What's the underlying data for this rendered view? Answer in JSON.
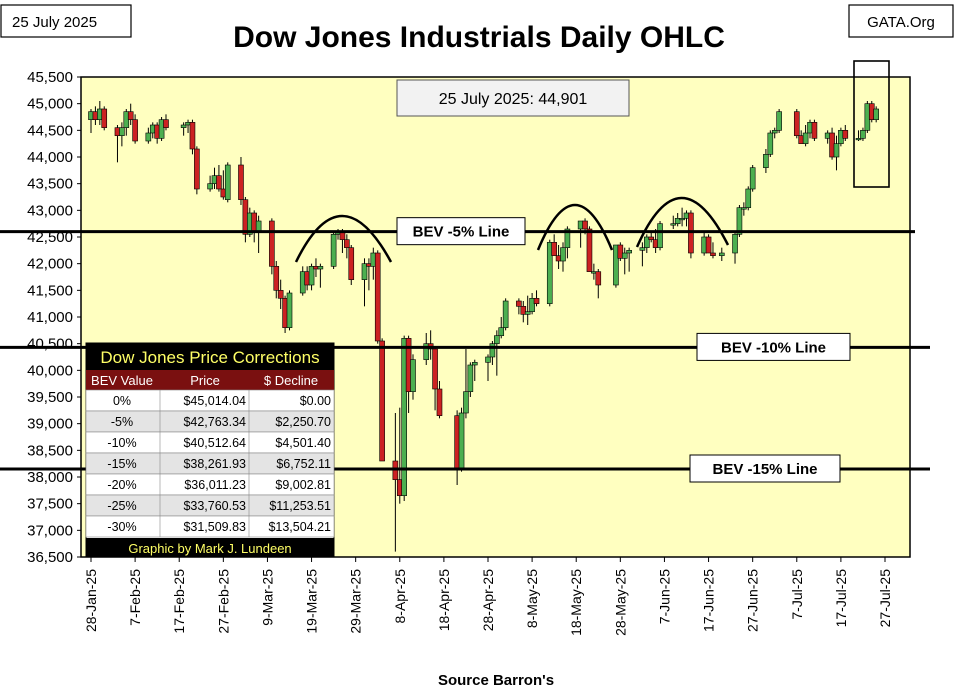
{
  "header": {
    "date_label": "25 July 2025",
    "brand_label": "GATA.Org"
  },
  "chart_data": {
    "type": "candlestick",
    "title": "Dow Jones Industrials Daily OHLC",
    "xlabel": "Source Barron's",
    "ylabel": "",
    "ylim": [
      36500,
      45500
    ],
    "yticks": [
      "36,500",
      "37,000",
      "37,500",
      "38,000",
      "38,500",
      "39,000",
      "39,500",
      "40,000",
      "40,500",
      "41,000",
      "41,500",
      "42,000",
      "42,500",
      "43,000",
      "43,500",
      "44,000",
      "44,500",
      "45,000",
      "45,500"
    ],
    "xticks": [
      "28-Jan-25",
      "7-Feb-25",
      "17-Feb-25",
      "27-Feb-25",
      "9-Mar-25",
      "19-Mar-25",
      "29-Mar-25",
      "8-Apr-25",
      "18-Apr-25",
      "28-Apr-25",
      "8-May-25",
      "18-May-25",
      "28-May-25",
      "7-Jun-25",
      "17-Jun-25",
      "27-Jun-25",
      "7-Jul-25",
      "17-Jul-25",
      "27-Jul-25"
    ],
    "colors": {
      "up": "#4caf50",
      "down": "#cc2222",
      "plot_bg": "#ffffc0"
    },
    "annotation": "25 July 2025:  44,901",
    "reference_lines": [
      {
        "label": "BEV -5% Line",
        "value": 42600
      },
      {
        "label": "BEV -10% Line",
        "value": 40430
      },
      {
        "label": "BEV -15% Line",
        "value": 38150
      }
    ],
    "candles": [
      {
        "x": "2025-01-28",
        "o": 44700,
        "h": 44900,
        "l": 44450,
        "c": 44850
      },
      {
        "x": "2025-01-29",
        "o": 44850,
        "h": 44950,
        "l": 44600,
        "c": 44700
      },
      {
        "x": "2025-01-30",
        "o": 44700,
        "h": 45050,
        "l": 44600,
        "c": 44900
      },
      {
        "x": "2025-01-31",
        "o": 44900,
        "h": 44950,
        "l": 44500,
        "c": 44550
      },
      {
        "x": "2025-02-03",
        "o": 44550,
        "h": 44600,
        "l": 43900,
        "c": 44400
      },
      {
        "x": "2025-02-04",
        "o": 44400,
        "h": 44650,
        "l": 44200,
        "c": 44550
      },
      {
        "x": "2025-02-05",
        "o": 44550,
        "h": 44900,
        "l": 44400,
        "c": 44850
      },
      {
        "x": "2025-02-06",
        "o": 44850,
        "h": 45000,
        "l": 44600,
        "c": 44700
      },
      {
        "x": "2025-02-07",
        "o": 44700,
        "h": 44800,
        "l": 44250,
        "c": 44300
      },
      {
        "x": "2025-02-10",
        "o": 44300,
        "h": 44550,
        "l": 44250,
        "c": 44450
      },
      {
        "x": "2025-02-11",
        "o": 44450,
        "h": 44650,
        "l": 44350,
        "c": 44600
      },
      {
        "x": "2025-02-12",
        "o": 44600,
        "h": 44650,
        "l": 44250,
        "c": 44350
      },
      {
        "x": "2025-02-13",
        "o": 44350,
        "h": 44750,
        "l": 44300,
        "c": 44700
      },
      {
        "x": "2025-02-14",
        "o": 44700,
        "h": 44800,
        "l": 44500,
        "c": 44550
      },
      {
        "x": "2025-02-18",
        "o": 44550,
        "h": 44650,
        "l": 44400,
        "c": 44600
      },
      {
        "x": "2025-02-19",
        "o": 44600,
        "h": 44700,
        "l": 44450,
        "c": 44650
      },
      {
        "x": "2025-02-20",
        "o": 44650,
        "h": 44700,
        "l": 44050,
        "c": 44150
      },
      {
        "x": "2025-02-21",
        "o": 44150,
        "h": 44200,
        "l": 43300,
        "c": 43400
      },
      {
        "x": "2025-02-24",
        "o": 43400,
        "h": 43650,
        "l": 43350,
        "c": 43500
      },
      {
        "x": "2025-02-25",
        "o": 43500,
        "h": 43800,
        "l": 43400,
        "c": 43650
      },
      {
        "x": "2025-02-26",
        "o": 43650,
        "h": 43850,
        "l": 43350,
        "c": 43400
      },
      {
        "x": "2025-02-27",
        "o": 43400,
        "h": 43750,
        "l": 43200,
        "c": 43250
      },
      {
        "x": "2025-02-28",
        "o": 43200,
        "h": 43900,
        "l": 43150,
        "c": 43850
      },
      {
        "x": "2025-03-03",
        "o": 43850,
        "h": 44000,
        "l": 43100,
        "c": 43200
      },
      {
        "x": "2025-03-04",
        "o": 43200,
        "h": 43250,
        "l": 42400,
        "c": 42550
      },
      {
        "x": "2025-03-05",
        "o": 42550,
        "h": 43050,
        "l": 42500,
        "c": 42950
      },
      {
        "x": "2025-03-06",
        "o": 42950,
        "h": 43000,
        "l": 42400,
        "c": 42600
      },
      {
        "x": "2025-03-07",
        "o": 42600,
        "h": 42900,
        "l": 42200,
        "c": 42800
      },
      {
        "x": "2025-03-10",
        "o": 42800,
        "h": 42850,
        "l": 41800,
        "c": 41950
      },
      {
        "x": "2025-03-11",
        "o": 41950,
        "h": 42050,
        "l": 41350,
        "c": 41500
      },
      {
        "x": "2025-03-12",
        "o": 41500,
        "h": 41700,
        "l": 41150,
        "c": 41350
      },
      {
        "x": "2025-03-13",
        "o": 41350,
        "h": 41400,
        "l": 40700,
        "c": 40800
      },
      {
        "x": "2025-03-14",
        "o": 40800,
        "h": 41500,
        "l": 40750,
        "c": 41450
      },
      {
        "x": "2025-03-17",
        "o": 41450,
        "h": 41950,
        "l": 41400,
        "c": 41850
      },
      {
        "x": "2025-03-18",
        "o": 41850,
        "h": 41950,
        "l": 41500,
        "c": 41600
      },
      {
        "x": "2025-03-19",
        "o": 41600,
        "h": 42000,
        "l": 41500,
        "c": 41950
      },
      {
        "x": "2025-03-20",
        "o": 41950,
        "h": 42100,
        "l": 41750,
        "c": 41900
      },
      {
        "x": "2025-03-21",
        "o": 41900,
        "h": 42000,
        "l": 41550,
        "c": 41950
      },
      {
        "x": "2025-03-24",
        "o": 41950,
        "h": 42600,
        "l": 41900,
        "c": 42550
      },
      {
        "x": "2025-03-25",
        "o": 42550,
        "h": 42650,
        "l": 42450,
        "c": 42600
      },
      {
        "x": "2025-03-26",
        "o": 42600,
        "h": 42650,
        "l": 42200,
        "c": 42450
      },
      {
        "x": "2025-03-27",
        "o": 42450,
        "h": 42550,
        "l": 42100,
        "c": 42300
      },
      {
        "x": "2025-03-28",
        "o": 42300,
        "h": 42350,
        "l": 41600,
        "c": 41700
      },
      {
        "x": "2025-03-31",
        "o": 41700,
        "h": 42100,
        "l": 41200,
        "c": 42000
      },
      {
        "x": "2025-04-01",
        "o": 42000,
        "h": 42100,
        "l": 41500,
        "c": 41950
      },
      {
        "x": "2025-04-02",
        "o": 41950,
        "h": 42300,
        "l": 41700,
        "c": 42200
      },
      {
        "x": "2025-04-03",
        "o": 42200,
        "h": 42250,
        "l": 40500,
        "c": 40550
      },
      {
        "x": "2025-04-04",
        "o": 40550,
        "h": 40600,
        "l": 38300,
        "c": 38300
      },
      {
        "x": "2025-04-07",
        "o": 38300,
        "h": 39200,
        "l": 36600,
        "c": 37950
      },
      {
        "x": "2025-04-08",
        "o": 37950,
        "h": 39300,
        "l": 37500,
        "c": 37650
      },
      {
        "x": "2025-04-09",
        "o": 37650,
        "h": 40650,
        "l": 37550,
        "c": 40600
      },
      {
        "x": "2025-04-10",
        "o": 40600,
        "h": 40650,
        "l": 39200,
        "c": 39600
      },
      {
        "x": "2025-04-11",
        "o": 39600,
        "h": 40300,
        "l": 39450,
        "c": 40200
      },
      {
        "x": "2025-04-14",
        "o": 40200,
        "h": 40700,
        "l": 40100,
        "c": 40500
      },
      {
        "x": "2025-04-15",
        "o": 40500,
        "h": 40750,
        "l": 40200,
        "c": 40400
      },
      {
        "x": "2025-04-16",
        "o": 40400,
        "h": 40450,
        "l": 39250,
        "c": 39650
      },
      {
        "x": "2025-04-17",
        "o": 39650,
        "h": 39800,
        "l": 39100,
        "c": 39150
      },
      {
        "x": "2025-04-21",
        "o": 39150,
        "h": 39250,
        "l": 37850,
        "c": 38150
      },
      {
        "x": "2025-04-22",
        "o": 38150,
        "h": 39300,
        "l": 38100,
        "c": 39200
      },
      {
        "x": "2025-04-23",
        "o": 39200,
        "h": 40400,
        "l": 39100,
        "c": 39600
      },
      {
        "x": "2025-04-24",
        "o": 39600,
        "h": 40150,
        "l": 39500,
        "c": 40100
      },
      {
        "x": "2025-04-25",
        "o": 40100,
        "h": 40200,
        "l": 39800,
        "c": 40150
      },
      {
        "x": "2025-04-28",
        "o": 40150,
        "h": 40300,
        "l": 39800,
        "c": 40250
      },
      {
        "x": "2025-04-29",
        "o": 40250,
        "h": 40550,
        "l": 40100,
        "c": 40500
      },
      {
        "x": "2025-04-30",
        "o": 40500,
        "h": 40750,
        "l": 39900,
        "c": 40650
      },
      {
        "x": "2025-05-01",
        "o": 40650,
        "h": 41000,
        "l": 40600,
        "c": 40800
      },
      {
        "x": "2025-05-02",
        "o": 40800,
        "h": 41350,
        "l": 40750,
        "c": 41300
      },
      {
        "x": "2025-05-05",
        "o": 41300,
        "h": 41350,
        "l": 41050,
        "c": 41200
      },
      {
        "x": "2025-05-06",
        "o": 41200,
        "h": 41300,
        "l": 40900,
        "c": 41050
      },
      {
        "x": "2025-05-07",
        "o": 41050,
        "h": 41400,
        "l": 40850,
        "c": 41100
      },
      {
        "x": "2025-05-08",
        "o": 41100,
        "h": 41450,
        "l": 41050,
        "c": 41350
      },
      {
        "x": "2025-05-09",
        "o": 41350,
        "h": 41500,
        "l": 41200,
        "c": 41250
      },
      {
        "x": "2025-05-12",
        "o": 41250,
        "h": 42450,
        "l": 41200,
        "c": 42400
      },
      {
        "x": "2025-05-13",
        "o": 42400,
        "h": 42550,
        "l": 42150,
        "c": 42150
      },
      {
        "x": "2025-05-14",
        "o": 42150,
        "h": 42350,
        "l": 41900,
        "c": 42050
      },
      {
        "x": "2025-05-15",
        "o": 42050,
        "h": 42400,
        "l": 41850,
        "c": 42300
      },
      {
        "x": "2025-05-16",
        "o": 42300,
        "h": 42700,
        "l": 42100,
        "c": 42650
      },
      {
        "x": "2025-05-19",
        "o": 42650,
        "h": 42800,
        "l": 42300,
        "c": 42800
      },
      {
        "x": "2025-05-20",
        "o": 42800,
        "h": 42850,
        "l": 42550,
        "c": 42650
      },
      {
        "x": "2025-05-21",
        "o": 42650,
        "h": 42700,
        "l": 41850,
        "c": 41850
      },
      {
        "x": "2025-05-22",
        "o": 41850,
        "h": 42000,
        "l": 41700,
        "c": 41850
      },
      {
        "x": "2025-05-23",
        "o": 41850,
        "h": 41900,
        "l": 41350,
        "c": 41600
      },
      {
        "x": "2025-05-27",
        "o": 41600,
        "h": 42350,
        "l": 41550,
        "c": 42350
      },
      {
        "x": "2025-05-28",
        "o": 42350,
        "h": 42400,
        "l": 42050,
        "c": 42100
      },
      {
        "x": "2025-05-29",
        "o": 42100,
        "h": 42300,
        "l": 41800,
        "c": 42200
      },
      {
        "x": "2025-05-30",
        "o": 42200,
        "h": 42300,
        "l": 41850,
        "c": 42250
      },
      {
        "x": "2025-06-02",
        "o": 42250,
        "h": 42400,
        "l": 41950,
        "c": 42300
      },
      {
        "x": "2025-06-03",
        "o": 42300,
        "h": 42550,
        "l": 42200,
        "c": 42500
      },
      {
        "x": "2025-06-04",
        "o": 42500,
        "h": 42600,
        "l": 42400,
        "c": 42450
      },
      {
        "x": "2025-06-05",
        "o": 42450,
        "h": 42650,
        "l": 42200,
        "c": 42300
      },
      {
        "x": "2025-06-06",
        "o": 42300,
        "h": 42800,
        "l": 42250,
        "c": 42750
      },
      {
        "x": "2025-06-09",
        "o": 42750,
        "h": 42900,
        "l": 42650,
        "c": 42750
      },
      {
        "x": "2025-06-10",
        "o": 42750,
        "h": 42950,
        "l": 42700,
        "c": 42850
      },
      {
        "x": "2025-06-11",
        "o": 42850,
        "h": 43050,
        "l": 42700,
        "c": 42850
      },
      {
        "x": "2025-06-12",
        "o": 42850,
        "h": 43000,
        "l": 42700,
        "c": 42950
      },
      {
        "x": "2025-06-13",
        "o": 42950,
        "h": 43000,
        "l": 42100,
        "c": 42200
      },
      {
        "x": "2025-06-16",
        "o": 42200,
        "h": 42600,
        "l": 42150,
        "c": 42500
      },
      {
        "x": "2025-06-17",
        "o": 42500,
        "h": 42550,
        "l": 42200,
        "c": 42200
      },
      {
        "x": "2025-06-18",
        "o": 42200,
        "h": 42400,
        "l": 42100,
        "c": 42150
      },
      {
        "x": "2025-06-20",
        "o": 42150,
        "h": 42300,
        "l": 42050,
        "c": 42200
      },
      {
        "x": "2025-06-23",
        "o": 42200,
        "h": 42600,
        "l": 42000,
        "c": 42550
      },
      {
        "x": "2025-06-24",
        "o": 42550,
        "h": 43100,
        "l": 42500,
        "c": 43050
      },
      {
        "x": "2025-06-25",
        "o": 43050,
        "h": 43150,
        "l": 42900,
        "c": 43050
      },
      {
        "x": "2025-06-26",
        "o": 43050,
        "h": 43450,
        "l": 43000,
        "c": 43400
      },
      {
        "x": "2025-06-27",
        "o": 43400,
        "h": 43850,
        "l": 43350,
        "c": 43800
      },
      {
        "x": "2025-06-30",
        "o": 43800,
        "h": 44150,
        "l": 43700,
        "c": 44050
      },
      {
        "x": "2025-07-01",
        "o": 44050,
        "h": 44500,
        "l": 44000,
        "c": 44450
      },
      {
        "x": "2025-07-02",
        "o": 44450,
        "h": 44550,
        "l": 44350,
        "c": 44500
      },
      {
        "x": "2025-07-03",
        "o": 44500,
        "h": 44900,
        "l": 44450,
        "c": 44850
      },
      {
        "x": "2025-07-07",
        "o": 44850,
        "h": 44900,
        "l": 44350,
        "c": 44400
      },
      {
        "x": "2025-07-08",
        "o": 44400,
        "h": 44500,
        "l": 44250,
        "c": 44250
      },
      {
        "x": "2025-07-09",
        "o": 44250,
        "h": 44600,
        "l": 44200,
        "c": 44450
      },
      {
        "x": "2025-07-10",
        "o": 44450,
        "h": 44700,
        "l": 44350,
        "c": 44650
      },
      {
        "x": "2025-07-11",
        "o": 44650,
        "h": 44700,
        "l": 44300,
        "c": 44350
      },
      {
        "x": "2025-07-14",
        "o": 44350,
        "h": 44500,
        "l": 44250,
        "c": 44450
      },
      {
        "x": "2025-07-15",
        "o": 44450,
        "h": 44550,
        "l": 43950,
        "c": 44000
      },
      {
        "x": "2025-07-16",
        "o": 44000,
        "h": 44400,
        "l": 43750,
        "c": 44250
      },
      {
        "x": "2025-07-17",
        "o": 44250,
        "h": 44550,
        "l": 44200,
        "c": 44500
      },
      {
        "x": "2025-07-18",
        "o": 44500,
        "h": 44600,
        "l": 44300,
        "c": 44350
      },
      {
        "x": "2025-07-21",
        "o": 44350,
        "h": 44500,
        "l": 44300,
        "c": 44350
      },
      {
        "x": "2025-07-22",
        "o": 44350,
        "h": 44550,
        "l": 44300,
        "c": 44500
      },
      {
        "x": "2025-07-23",
        "o": 44500,
        "h": 45050,
        "l": 44450,
        "c": 45000
      },
      {
        "x": "2025-07-24",
        "o": 45000,
        "h": 45050,
        "l": 44650,
        "c": 44700
      },
      {
        "x": "2025-07-25",
        "o": 44700,
        "h": 44950,
        "l": 44650,
        "c": 44900
      }
    ]
  },
  "corrections_table": {
    "title": "Dow Jones Price Corrections",
    "headers": [
      "BEV Value",
      "Price",
      "$ Decline"
    ],
    "rows": [
      [
        "0%",
        "$45,014.04",
        "$0.00"
      ],
      [
        "-5%",
        "$42,763.34",
        "$2,250.70"
      ],
      [
        "-10%",
        "$40,512.64",
        "$4,501.40"
      ],
      [
        "-15%",
        "$38,261.93",
        "$6,752.11"
      ],
      [
        "-20%",
        "$36,011.23",
        "$9,002.81"
      ],
      [
        "-25%",
        "$33,760.53",
        "$11,253.51"
      ],
      [
        "-30%",
        "$31,509.83",
        "$13,504.21"
      ]
    ],
    "footer": "Graphic by Mark J. Lundeen"
  }
}
